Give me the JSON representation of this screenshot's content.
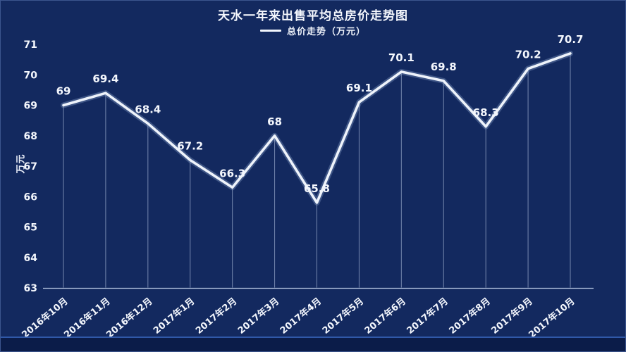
{
  "chart_data": {
    "type": "line",
    "title": "天水一年来出售平均总房价走势图",
    "legend": {
      "label": "总价走势（万元）",
      "position": "top-center",
      "swatch": "line"
    },
    "categories": [
      "2016年10月",
      "2016年11月",
      "2016年12月",
      "2017年1月",
      "2017年2月",
      "2017年3月",
      "2017年4月",
      "2017年5月",
      "2017年6月",
      "2017年7月",
      "2017年8月",
      "2017年9月",
      "2017年10月"
    ],
    "series": [
      {
        "name": "总价走势（万元）",
        "values": [
          69,
          69.4,
          68.4,
          67.2,
          66.3,
          68,
          65.8,
          69.1,
          70.1,
          69.8,
          68.3,
          70.2,
          70.7
        ]
      }
    ],
    "data_labels_shown": true,
    "xlabel": "",
    "ylabel": "万元",
    "ylim": [
      63,
      71
    ],
    "yticks": [
      63,
      64,
      65,
      66,
      67,
      68,
      69,
      70,
      71
    ],
    "grid": "vertical-drop-lines-only",
    "x_tick_rotation_deg": -40,
    "colors": {
      "background": "#13295f",
      "line": "#eef3fb",
      "line_glow": "#aec6ea",
      "drop_line": "#c6d5ef",
      "axis": "#c3d1ea",
      "text": "#f4f7fd",
      "footer": "#0b1c49",
      "footer_divider": "#3058a8"
    }
  }
}
